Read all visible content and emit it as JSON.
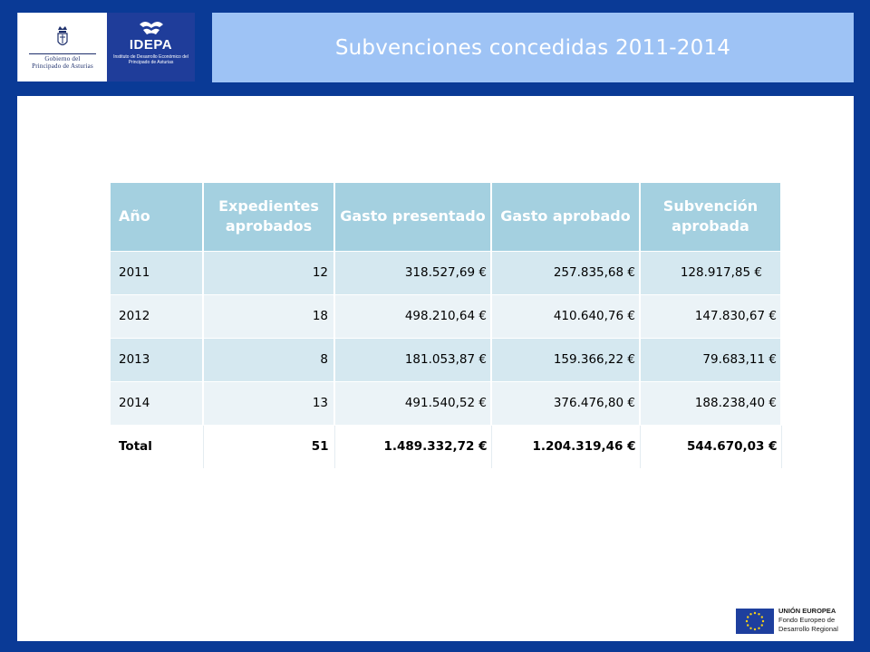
{
  "header": {
    "title": "Subvenciones concedidas 2011-2014",
    "logo_asturias_text": [
      "Gobierno del",
      "Principado de Asturias"
    ],
    "logo_idepa_name": "IDEPA",
    "logo_idepa_sub": "Instituto de Desarrollo Económico del Principado de Asturias"
  },
  "table": {
    "columns": [
      "Año",
      "Expedientes aprobados",
      "Gasto presentado",
      "Gasto aprobado",
      "Subvención aprobada"
    ],
    "rows": [
      {
        "year": "2011",
        "expedientes": "12",
        "gasto_presentado": "318.527,69 €",
        "gasto_aprobado": "257.835,68 €",
        "subvencion": "128.917,85 €"
      },
      {
        "year": "2012",
        "expedientes": "18",
        "gasto_presentado": "498.210,64 €",
        "gasto_aprobado": "410.640,76 €",
        "subvencion": "147.830,67 €"
      },
      {
        "year": "2013",
        "expedientes": "8",
        "gasto_presentado": "181.053,87 €",
        "gasto_aprobado": "159.366,22 €",
        "subvencion": "79.683,11 €"
      },
      {
        "year": "2014",
        "expedientes": "13",
        "gasto_presentado": "491.540,52 €",
        "gasto_aprobado": "376.476,80 €",
        "subvencion": "188.238,40 €"
      }
    ],
    "total": {
      "year": "Total",
      "expedientes": "51",
      "gasto_presentado": "1.489.332,72 €",
      "gasto_aprobado": "1.204.319,46 €",
      "subvencion": "544.670,03 €"
    }
  },
  "footer": {
    "eu_title": "UNIÓN EUROPEA",
    "eu_line1": "Fondo Europeo de",
    "eu_line2": "Desarrollo Regional"
  },
  "colors": {
    "background": "#0a3a96",
    "title_bar": "#9ec3f5",
    "table_header": "#a4d0e0",
    "row_odd": "#d5e8f0",
    "row_even": "#ebf3f7"
  }
}
